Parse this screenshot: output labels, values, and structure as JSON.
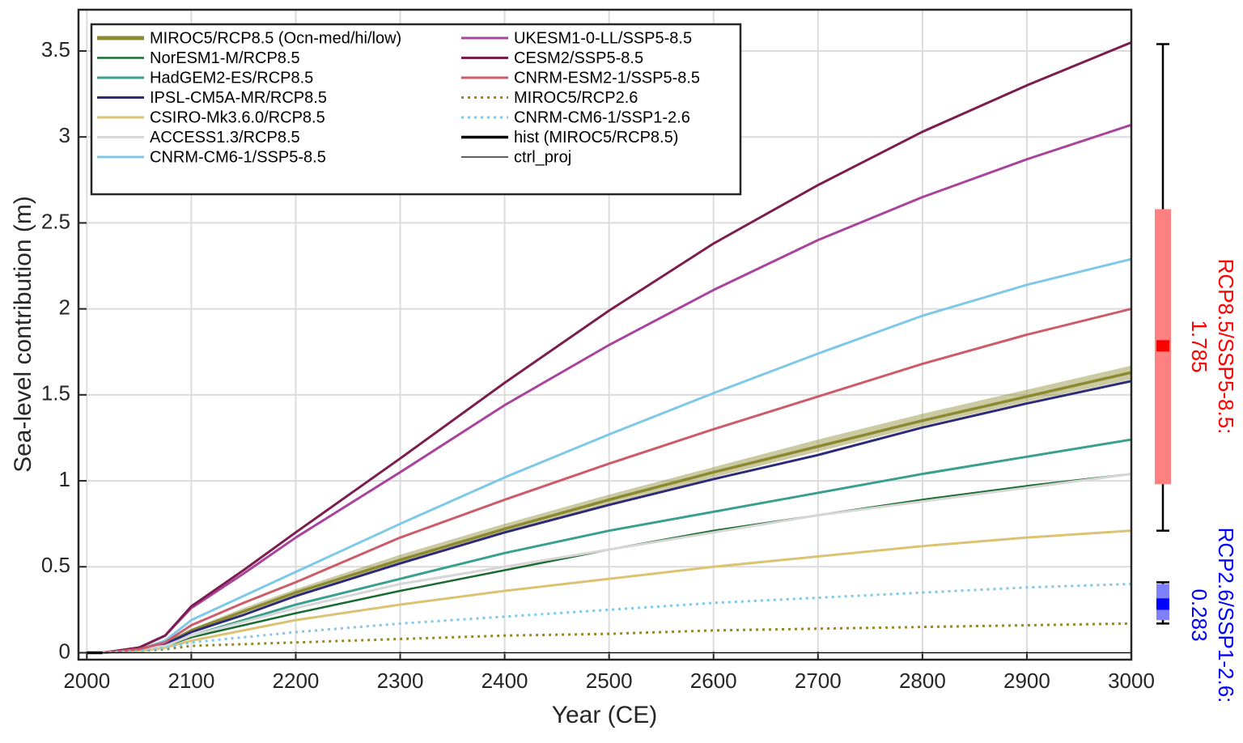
{
  "chart_data": {
    "type": "line",
    "xlabel": "Year (CE)",
    "ylabel": "Sea-level contribution (m)",
    "x": [
      2015,
      2050,
      2075,
      2100,
      2150,
      2200,
      2300,
      2400,
      2500,
      2600,
      2700,
      2800,
      2900,
      3000
    ],
    "xlim": [
      1992,
      3000
    ],
    "xticks": [
      2000,
      2100,
      2200,
      2300,
      2400,
      2500,
      2600,
      2700,
      2800,
      2900,
      3000
    ],
    "ylim": [
      -0.04,
      3.74
    ],
    "yticks": [
      0,
      0.5,
      1,
      1.5,
      2,
      2.5,
      3,
      3.5
    ],
    "grid": true,
    "legend": "upper left",
    "series": [
      {
        "name": "MIROC5/RCP8.5 (Ocn-med/hi/low)",
        "color": "#8c8a30",
        "width": 3.5,
        "values": [
          0,
          0.02,
          0.05,
          0.13,
          0.24,
          0.35,
          0.54,
          0.72,
          0.89,
          1.05,
          1.2,
          1.35,
          1.49,
          1.63
        ],
        "low": [
          0,
          0.02,
          0.05,
          0.12,
          0.23,
          0.33,
          0.52,
          0.7,
          0.86,
          1.02,
          1.17,
          1.32,
          1.46,
          1.59
        ],
        "high": [
          0,
          0.02,
          0.06,
          0.14,
          0.26,
          0.37,
          0.57,
          0.75,
          0.92,
          1.08,
          1.24,
          1.39,
          1.53,
          1.67
        ]
      },
      {
        "name": "NorESM1-M/RCP8.5",
        "color": "#1a6b30",
        "width": 2.5,
        "values": [
          0,
          0.02,
          0.04,
          0.09,
          0.16,
          0.23,
          0.36,
          0.48,
          0.6,
          0.71,
          0.8,
          0.89,
          0.97,
          1.04
        ]
      },
      {
        "name": "HadGEM2-ES/RCP8.5",
        "color": "#3aa08e",
        "width": 3,
        "values": [
          0,
          0.02,
          0.04,
          0.1,
          0.19,
          0.28,
          0.43,
          0.58,
          0.71,
          0.82,
          0.93,
          1.04,
          1.14,
          1.24
        ]
      },
      {
        "name": "IPSL-CM5A-MR/RCP8.5",
        "color": "#2d2a7a",
        "width": 3,
        "values": [
          0,
          0.02,
          0.05,
          0.12,
          0.22,
          0.33,
          0.52,
          0.7,
          0.86,
          1.01,
          1.15,
          1.31,
          1.45,
          1.58
        ]
      },
      {
        "name": "CSIRO-Mk3.6.0/RCP8.5",
        "color": "#dcc373",
        "width": 3,
        "values": [
          0,
          0.01,
          0.03,
          0.07,
          0.13,
          0.19,
          0.28,
          0.36,
          0.43,
          0.5,
          0.56,
          0.62,
          0.67,
          0.71
        ]
      },
      {
        "name": "ACCESS1.3/RCP8.5",
        "color": "#d6d6d6",
        "width": 3,
        "values": [
          0,
          0.02,
          0.04,
          0.1,
          0.18,
          0.26,
          0.4,
          0.5,
          0.6,
          0.7,
          0.8,
          0.88,
          0.96,
          1.04
        ]
      },
      {
        "name": "CNRM-CM6-1/SSP5-8.5",
        "color": "#7ec8e8",
        "width": 3,
        "values": [
          0,
          0.02,
          0.07,
          0.19,
          0.33,
          0.47,
          0.75,
          1.02,
          1.27,
          1.51,
          1.74,
          1.96,
          2.14,
          2.29
        ]
      },
      {
        "name": "UKESM1-0-LL/SSP5-8.5",
        "color": "#a8449c",
        "width": 3,
        "values": [
          0,
          0.03,
          0.1,
          0.26,
          0.46,
          0.67,
          1.05,
          1.44,
          1.79,
          2.11,
          2.4,
          2.65,
          2.87,
          3.07
        ]
      },
      {
        "name": "CESM2/SSP5-8.5",
        "color": "#7b1e4f",
        "width": 3,
        "values": [
          0,
          0.03,
          0.1,
          0.27,
          0.48,
          0.7,
          1.13,
          1.57,
          1.99,
          2.38,
          2.72,
          3.03,
          3.3,
          3.55
        ]
      },
      {
        "name": "CNRM-ESM2-1/SSP5-8.5",
        "color": "#cd5c6a",
        "width": 3,
        "values": [
          0,
          0.02,
          0.06,
          0.16,
          0.29,
          0.41,
          0.67,
          0.89,
          1.1,
          1.3,
          1.49,
          1.68,
          1.85,
          2.0
        ]
      },
      {
        "name": "MIROC5/RCP2.6",
        "color": "#8c8a30",
        "width": 3,
        "style": "dotted",
        "values": [
          0,
          0.01,
          0.02,
          0.04,
          0.05,
          0.06,
          0.08,
          0.1,
          0.11,
          0.13,
          0.14,
          0.15,
          0.16,
          0.17
        ]
      },
      {
        "name": "CNRM-CM6-1/SSP1-2.6",
        "color": "#7ec8e8",
        "width": 3,
        "style": "dotted",
        "values": [
          0,
          0.01,
          0.03,
          0.06,
          0.09,
          0.12,
          0.17,
          0.21,
          0.25,
          0.29,
          0.32,
          0.35,
          0.38,
          0.4
        ]
      },
      {
        "name": "hist (MIROC5/RCP8.5)",
        "color": "#000000",
        "width": 3.5,
        "x": [
          2000,
          2015
        ],
        "values": [
          0,
          0
        ]
      },
      {
        "name": "ctrl_proj",
        "color": "#000000",
        "width": 1.2,
        "x": [
          2015,
          3000
        ],
        "values": [
          0,
          0
        ]
      }
    ],
    "summaries": [
      {
        "name": "RCP8.5/SSP5-8.5:",
        "color": "#ff0000",
        "box_color": "#ff8080",
        "min": 0.71,
        "q1": 0.98,
        "median": 1.785,
        "q3": 2.58,
        "max": 3.54
      },
      {
        "name": "RCP2.6/SSP1-2.6:",
        "color": "#0000ff",
        "box_color": "#8080ff",
        "min": 0.17,
        "q1": 0.19,
        "median": 0.283,
        "q3": 0.4,
        "max": 0.41
      }
    ]
  }
}
